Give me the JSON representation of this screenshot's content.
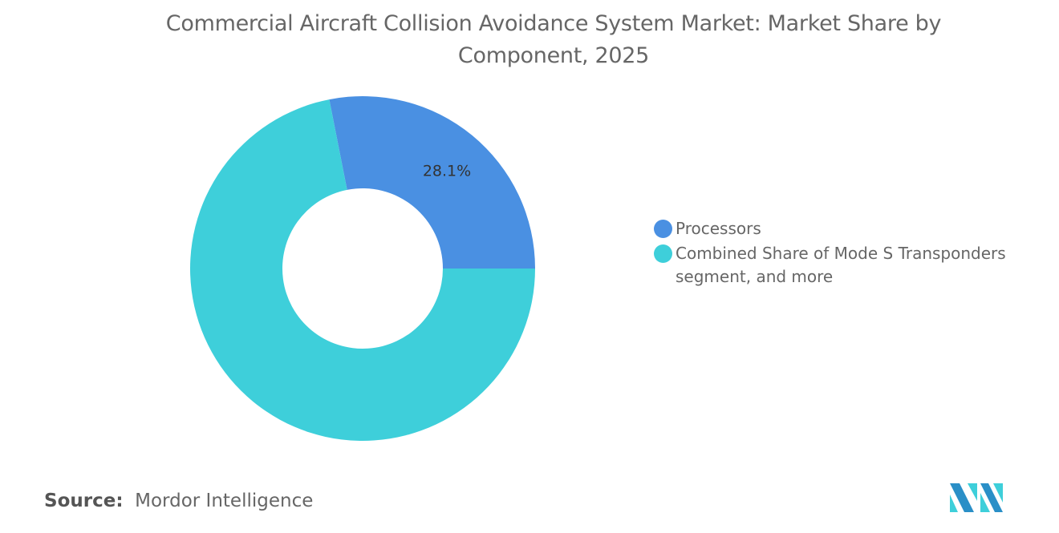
{
  "title": "Commercial Aircraft Collision Avoidance System Market: Market Share by Component, 2025",
  "chart_data": {
    "type": "pie",
    "donut": true,
    "title": "Commercial Aircraft Collision Avoidance System Market: Market Share by Component, 2025",
    "slices": [
      {
        "name": "Processors",
        "value": 28.1,
        "label": "28.1%",
        "color": "#4a90e2"
      },
      {
        "name": "Combined Share of Mode S Transponders segment, and more",
        "value": 71.9,
        "label": "",
        "color": "#3ecfda"
      }
    ],
    "legend_placement": "right"
  },
  "source": {
    "label": "Source:",
    "text": "Mordor Intelligence"
  },
  "logo_text": "MI"
}
